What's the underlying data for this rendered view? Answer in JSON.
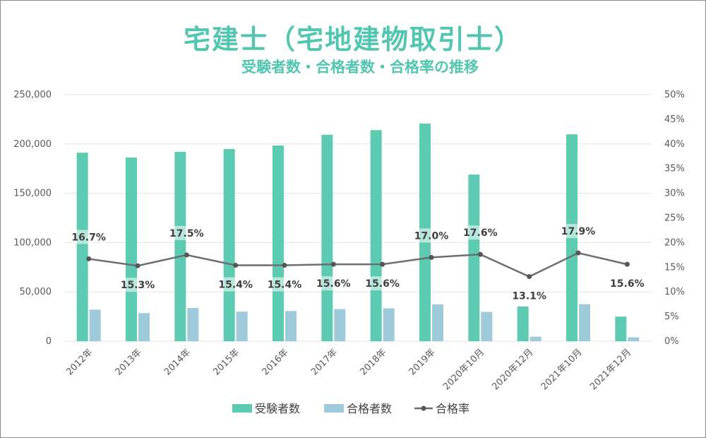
{
  "chart_data": {
    "type": "bar",
    "title": "宅建士（宅地建物取引士）",
    "subtitle": "受験者数・合格者数・合格率の推移",
    "categories": [
      "2012年",
      "2013年",
      "2014年",
      "2015年",
      "2016年",
      "2017年",
      "2018年",
      "2019年",
      "2020年10月",
      "2020年12月",
      "2021年10月",
      "2021年12月"
    ],
    "series": [
      {
        "name": "受験者数",
        "type": "bar",
        "axis": "left",
        "color": "#5ccbb2",
        "values": [
          191169,
          186304,
          192029,
          194926,
          198463,
          209354,
          213993,
          220797,
          168989,
          35261,
          209749,
          24965
        ]
      },
      {
        "name": "合格者数",
        "type": "bar",
        "axis": "left",
        "color": "#9ecadb",
        "values": [
          32000,
          28470,
          33670,
          30028,
          30589,
          32644,
          33360,
          37481,
          29728,
          4610,
          37579,
          3892
        ]
      },
      {
        "name": "合格率",
        "type": "line",
        "axis": "right",
        "color": "#6e6e6e",
        "values": [
          16.7,
          15.3,
          17.5,
          15.4,
          15.4,
          15.6,
          15.6,
          17.0,
          17.6,
          13.1,
          17.9,
          15.6
        ],
        "labels": [
          "16.7%",
          "15.3%",
          "17.5%",
          "15.4%",
          "15.4%",
          "15.6%",
          "15.6%",
          "17.0%",
          "17.6%",
          "13.1%",
          "17.9%",
          "15.6%"
        ],
        "label_pos": [
          "above",
          "below",
          "above",
          "below",
          "below",
          "below",
          "below",
          "above",
          "above",
          "below",
          "above",
          "below"
        ]
      }
    ],
    "y_left": {
      "min": 0,
      "max": 250000,
      "ticks": [
        "0",
        "50,000",
        "100,000",
        "150,000",
        "200,000",
        "250,000"
      ]
    },
    "y_right": {
      "min": 0,
      "max": 50,
      "ticks": [
        "0%",
        "5%",
        "10%",
        "15%",
        "20%",
        "25%",
        "30%",
        "35%",
        "40%",
        "45%",
        "50%"
      ]
    },
    "grid": true,
    "legend_position": "bottom"
  }
}
